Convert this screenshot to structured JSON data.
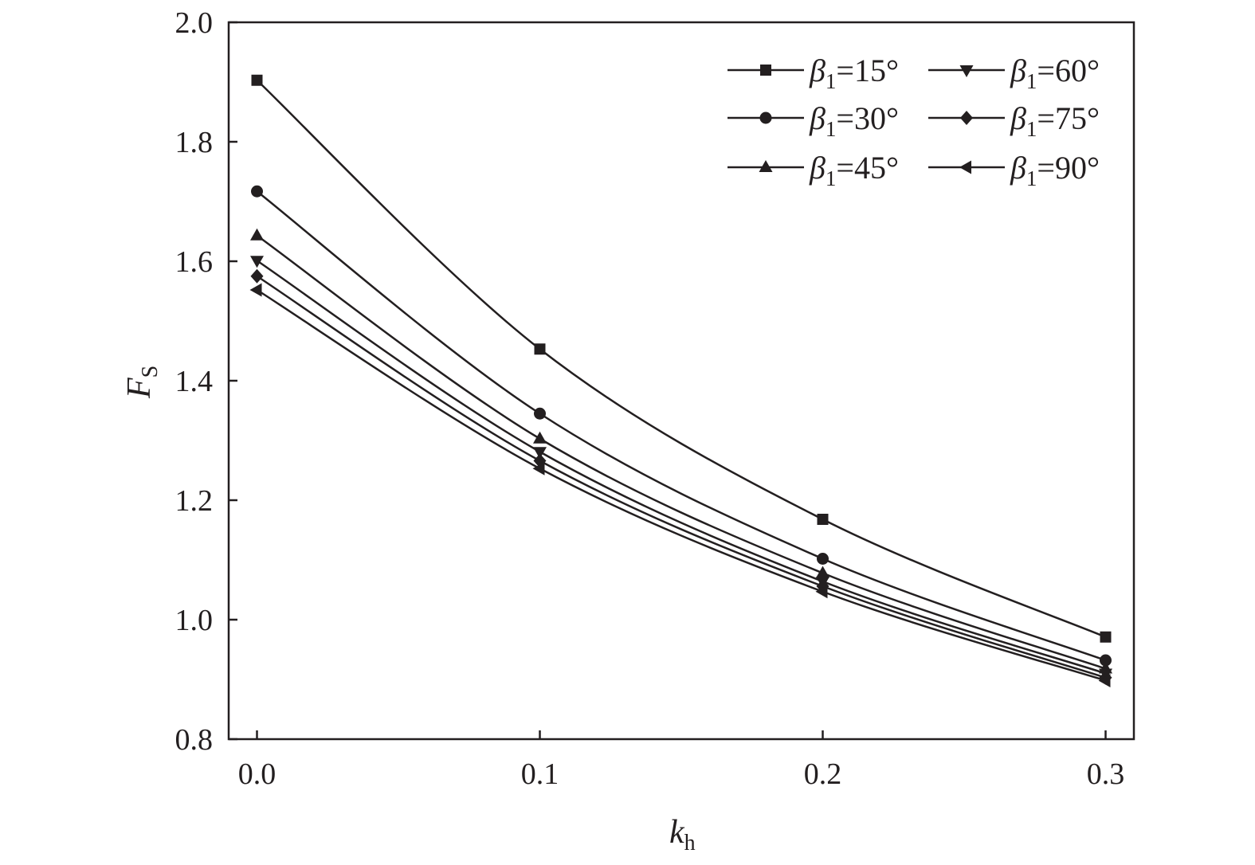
{
  "chart_data": {
    "type": "line",
    "title": "",
    "x_axis": {
      "label": "k",
      "label_subscript": "h",
      "min": -0.01,
      "max": 0.31,
      "ticks": [
        "0.0",
        "0.1",
        "0.2",
        "0.3"
      ],
      "tick_values": [
        0.0,
        0.1,
        0.2,
        0.3
      ]
    },
    "y_axis": {
      "label": "F",
      "label_subscript": "S",
      "min": 0.8,
      "max": 2.0,
      "ticks": [
        "0.8",
        "1.0",
        "1.2",
        "1.4",
        "1.6",
        "1.8",
        "2.0"
      ],
      "tick_values": [
        0.8,
        1.0,
        1.2,
        1.4,
        1.6,
        1.8,
        2.0
      ]
    },
    "x": [
      0.0,
      0.1,
      0.2,
      0.3
    ],
    "series": [
      {
        "name": "β1=15°",
        "symbol": "β",
        "sub": "1",
        "rest": "=15°",
        "marker": "square",
        "values": [
          1.903,
          1.453,
          1.168,
          0.971
        ]
      },
      {
        "name": "β1=30°",
        "symbol": "β",
        "sub": "1",
        "rest": "=30°",
        "marker": "circle",
        "values": [
          1.717,
          1.345,
          1.102,
          0.932
        ]
      },
      {
        "name": "β1=45°",
        "symbol": "β",
        "sub": "1",
        "rest": "=45°",
        "marker": "triangle-up",
        "values": [
          1.643,
          1.303,
          1.078,
          0.918
        ]
      },
      {
        "name": "β1=60°",
        "symbol": "β",
        "sub": "1",
        "rest": "=60°",
        "marker": "triangle-down",
        "values": [
          1.601,
          1.281,
          1.064,
          0.91
        ]
      },
      {
        "name": "β1=75°",
        "symbol": "β",
        "sub": "1",
        "rest": "=75°",
        "marker": "diamond",
        "values": [
          1.575,
          1.266,
          1.056,
          0.903
        ]
      },
      {
        "name": "β1=90°",
        "symbol": "β",
        "sub": "1",
        "rest": "=90°",
        "marker": "triangle-left",
        "values": [
          1.552,
          1.253,
          1.047,
          0.898
        ]
      }
    ],
    "legend": {
      "placement": "top-right",
      "columns": 2
    },
    "grid": false,
    "colors": {
      "line": "#231f20",
      "marker": "#231f20"
    }
  }
}
